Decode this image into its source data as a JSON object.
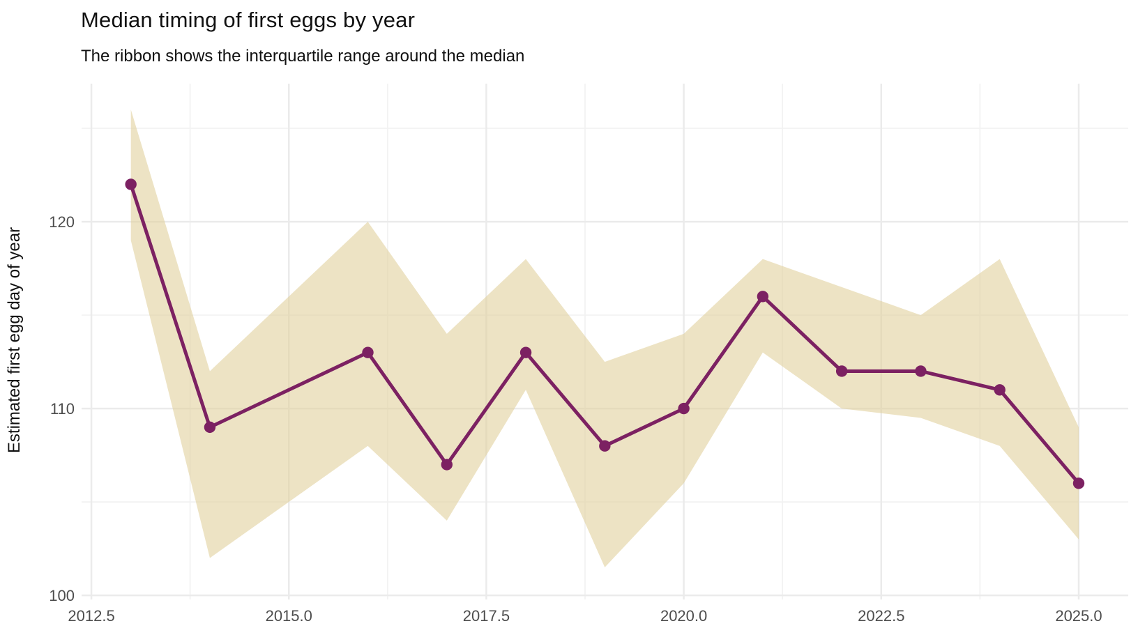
{
  "page": {
    "title": "Median timing of first eggs by year",
    "subtitle": "The ribbon shows the interquartile range around the median"
  },
  "chart_data": {
    "type": "line",
    "title": "Median timing of first eggs by year",
    "subtitle": "The ribbon shows the interquartile range around the median",
    "xlabel": "",
    "ylabel": "Estimated first egg day of year",
    "x": [
      2013,
      2014,
      2016,
      2017,
      2018,
      2019,
      2020,
      2021,
      2022,
      2023,
      2024,
      2025
    ],
    "series": [
      {
        "name": "median_first_egg_day",
        "values": [
          122,
          109,
          113,
          107,
          113,
          108,
          110,
          116,
          112,
          112,
          111,
          106
        ]
      },
      {
        "name": "iqr_lower",
        "values": [
          119,
          102,
          108,
          104,
          111,
          101.5,
          106,
          113,
          110,
          109.5,
          108,
          103
        ]
      },
      {
        "name": "iqr_upper",
        "values": [
          126,
          112,
          120,
          114,
          118,
          112.5,
          114,
          118,
          116.5,
          115,
          118,
          109
        ]
      }
    ],
    "ribbon": "interquartile range (iqr_lower to iqr_upper)",
    "x_ticks": [
      2012.5,
      2015.0,
      2017.5,
      2020.0,
      2022.5,
      2025.0
    ],
    "x_tick_labels": [
      "2012.5",
      "2015.0",
      "2017.5",
      "2020.0",
      "2022.5",
      "2025.0"
    ],
    "x_minor_ticks": [
      2013.75,
      2016.25,
      2018.75,
      2021.25,
      2023.75
    ],
    "y_ticks": [
      100,
      110,
      120
    ],
    "y_tick_labels": [
      "100",
      "110",
      "120"
    ],
    "y_minor_ticks": [
      105,
      115,
      125
    ],
    "xlim": [
      2012.376,
      2025.627
    ],
    "ylim": [
      99.78,
      127.39
    ],
    "grid": true,
    "legend_position": "none",
    "colors": {
      "line": "#7C2162",
      "point": "#7C2162",
      "ribbon": "#E1D09D",
      "ribbon_alpha": 0.6,
      "grid_major": "#EBEBEB",
      "grid_minor": "#F2F2F2",
      "tick_text": "#4D4D4D",
      "title_text": "#111111",
      "background": "#FFFFFF"
    }
  }
}
